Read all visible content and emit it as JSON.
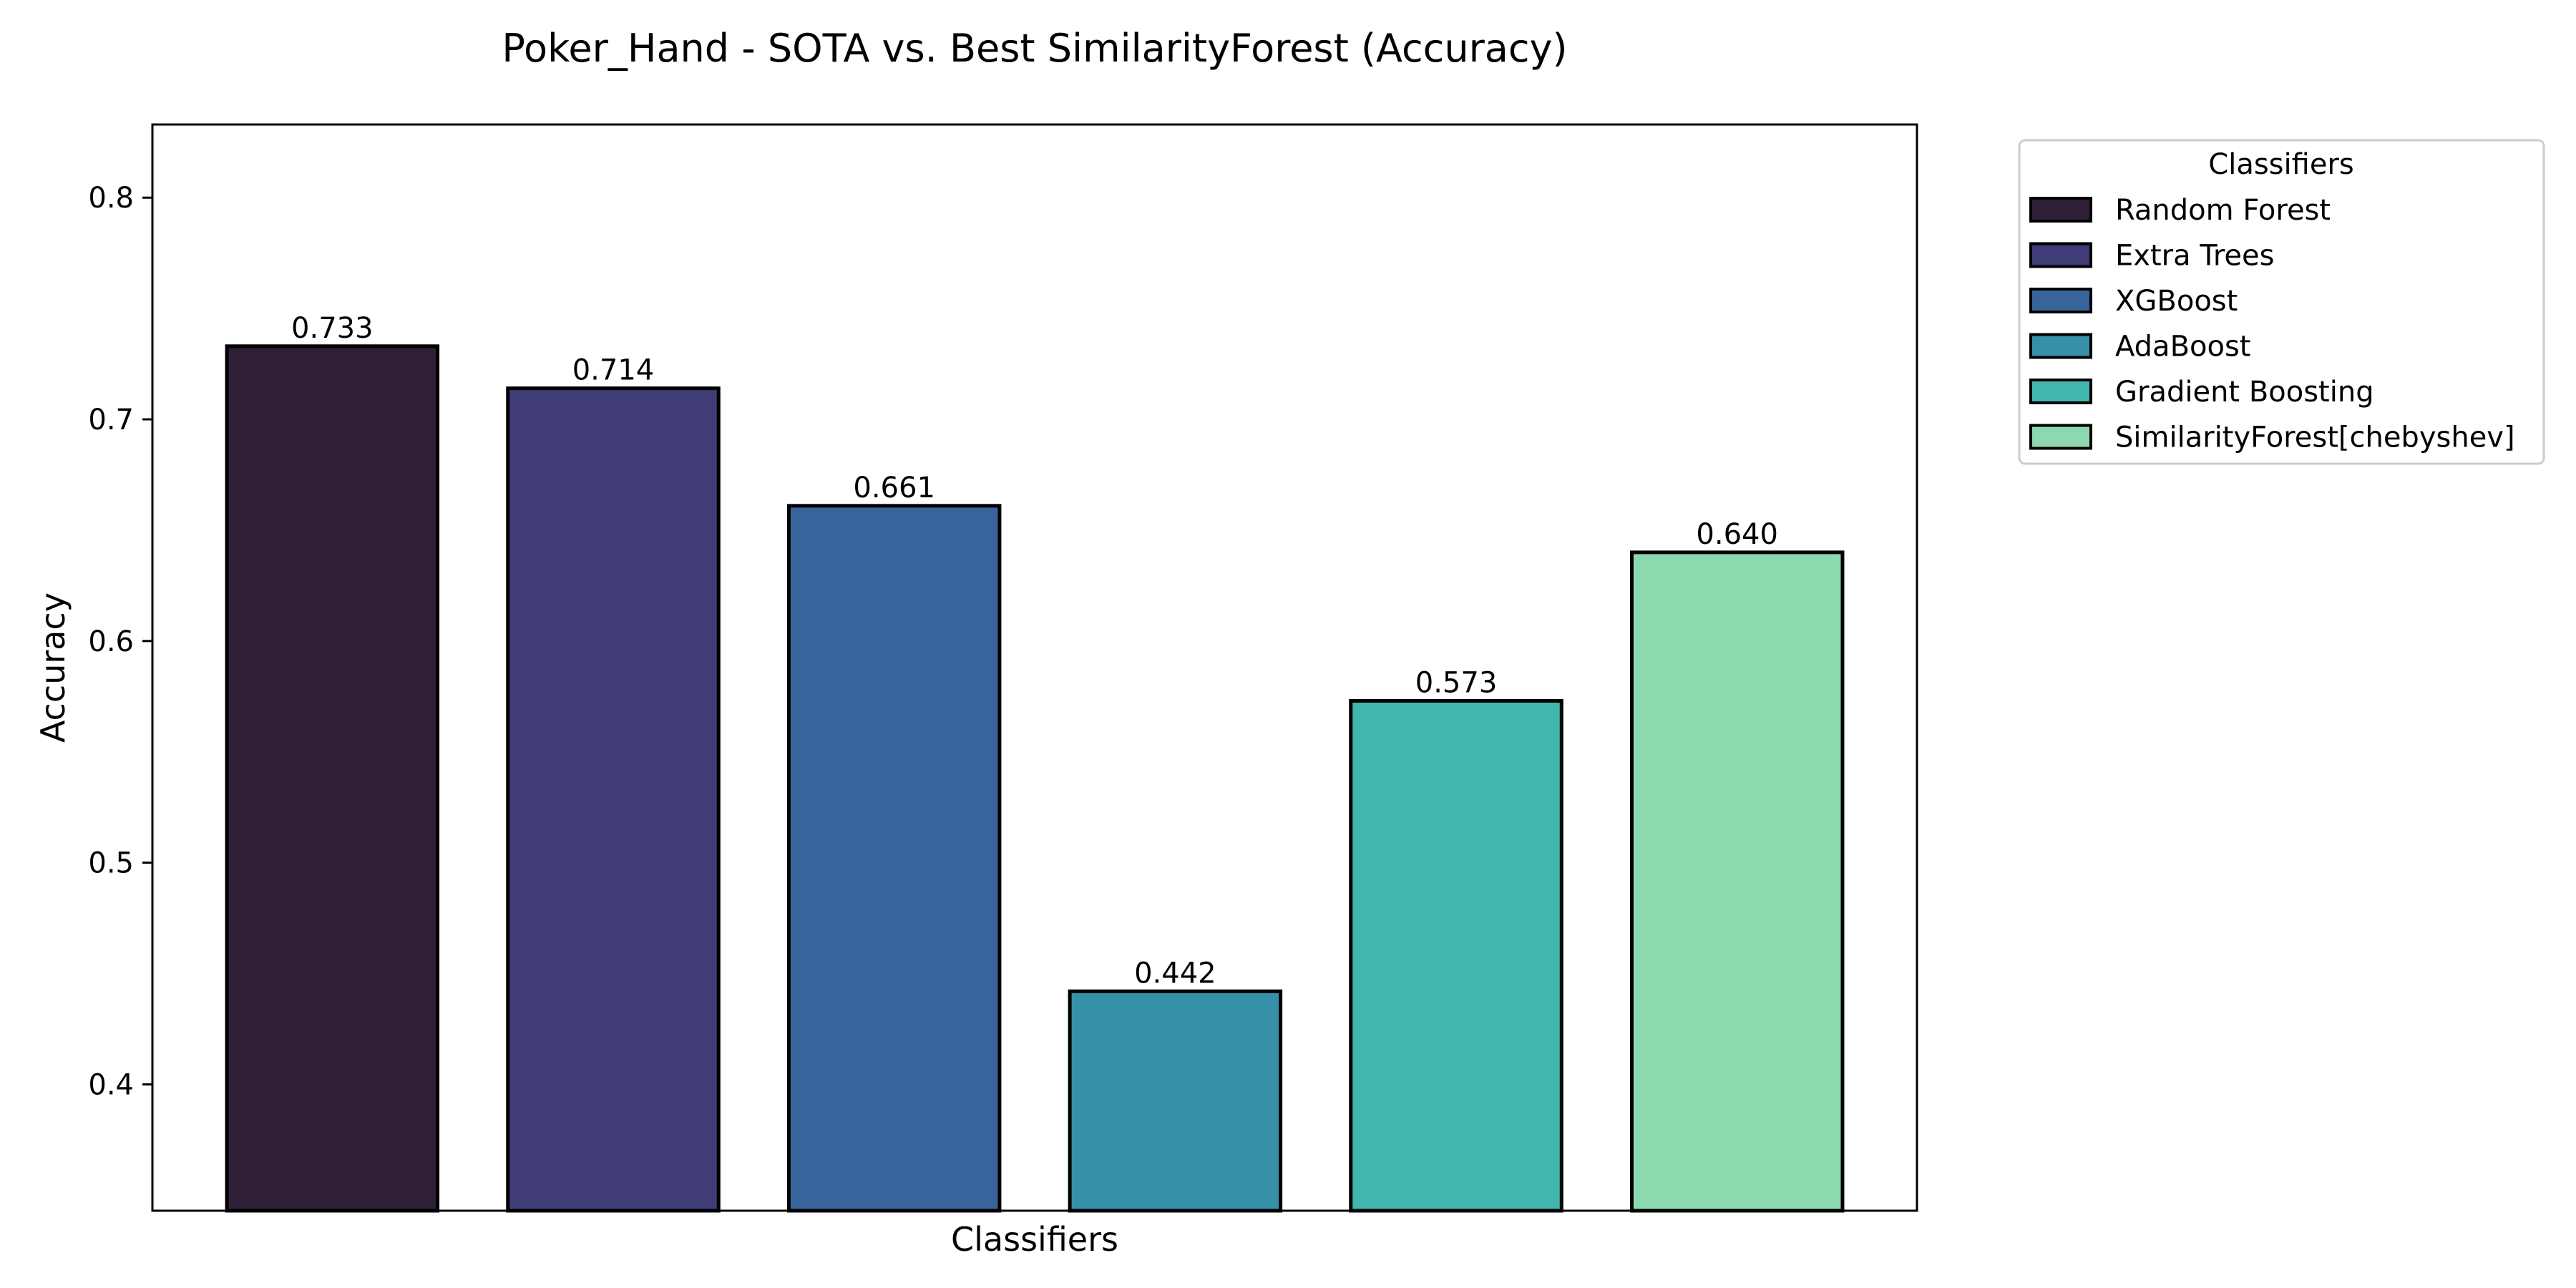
{
  "chart_data": {
    "type": "bar",
    "title": "Poker_Hand - SOTA vs. Best SimilarityForest (Accuracy)",
    "xlabel": "Classifiers",
    "ylabel": "Accuracy",
    "ylim": [
      0.343,
      0.833
    ],
    "yticks": [
      "0.4",
      "0.5",
      "0.6",
      "0.7",
      "0.8"
    ],
    "grid": false,
    "legend": {
      "title": "Classifiers",
      "placement": "outside-top-right"
    },
    "series": [
      {
        "name": "Random Forest",
        "value": 0.733,
        "label": "0.733",
        "color": "#2e1f37"
      },
      {
        "name": "Extra Trees",
        "value": 0.714,
        "label": "0.714",
        "color": "#403c77"
      },
      {
        "name": "XGBoost",
        "value": 0.661,
        "label": "0.661",
        "color": "#38649b"
      },
      {
        "name": "AdaBoost",
        "value": 0.442,
        "label": "0.442",
        "color": "#3690a8"
      },
      {
        "name": "Gradient Boosting",
        "value": 0.573,
        "label": "0.573",
        "color": "#42b7ad"
      },
      {
        "name": "SimilarityForest[chebyshev]",
        "value": 0.64,
        "label": "0.640",
        "color": "#8dd9af"
      }
    ]
  }
}
